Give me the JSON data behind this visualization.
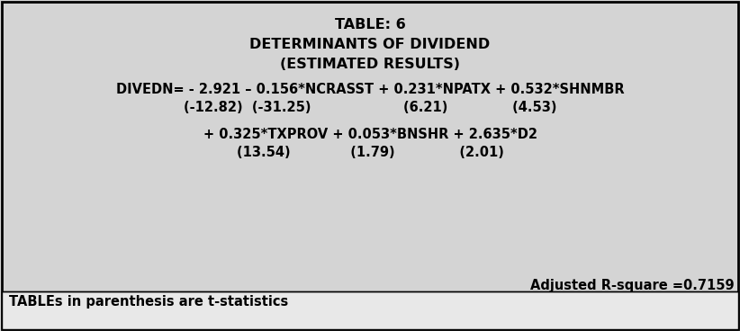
{
  "title_line1": "TABLE: 6",
  "title_line2": "DETERMINANTS OF DIVIDEND",
  "title_line3": "(ESTIMATED RESULTS)",
  "eq_line1": "DIVEDN= - 2.921 – 0.156*NCRASST + 0.231*NPATX + 0.532*SHNMBR",
  "eq_line2": "(-12.82)  (-31.25)                    (6.21)              (4.53)",
  "eq_line3": "+ 0.325*TXPROV + 0.053*BNSHR + 2.635*D2",
  "eq_line4": "(13.54)             (1.79)              (2.01)",
  "rsquare": "Adjusted R-square =0.7159",
  "footnote": "TABLEs in parenthesis are t-statistics",
  "bg_color_main": "#d4d4d4",
  "bg_color_footnote": "#e8e8e8",
  "border_color": "#000000",
  "text_color": "#000000",
  "title_fontsize": 11.5,
  "body_fontsize": 10.5,
  "footnote_fontsize": 10.5
}
